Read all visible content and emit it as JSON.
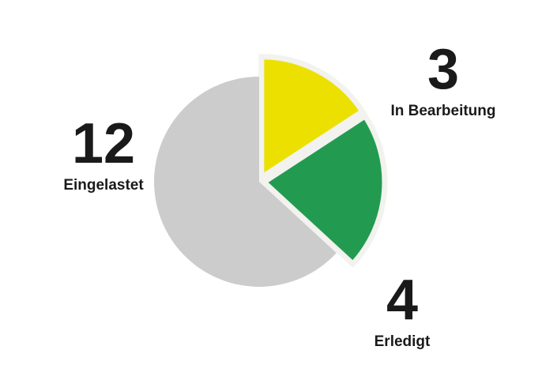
{
  "chart_data": {
    "type": "pie",
    "title": "",
    "slices": [
      {
        "label": "In Bearbeitung",
        "value": 3,
        "color": "#ece000",
        "exploded": true
      },
      {
        "label": "Erledigt",
        "value": 4,
        "color": "#229b50",
        "exploded": true
      },
      {
        "label": "Eingelastet",
        "value": 12,
        "color": "#cccccc",
        "exploded": false
      }
    ],
    "slice_border_color": "#f2f2ee"
  },
  "labels": {
    "eingelastet": {
      "count": "12",
      "name": "Eingelastet"
    },
    "bearbeitung": {
      "count": "3",
      "name": "In Bearbeitung"
    },
    "erledigt": {
      "count": "4",
      "name": "Erledigt"
    }
  }
}
